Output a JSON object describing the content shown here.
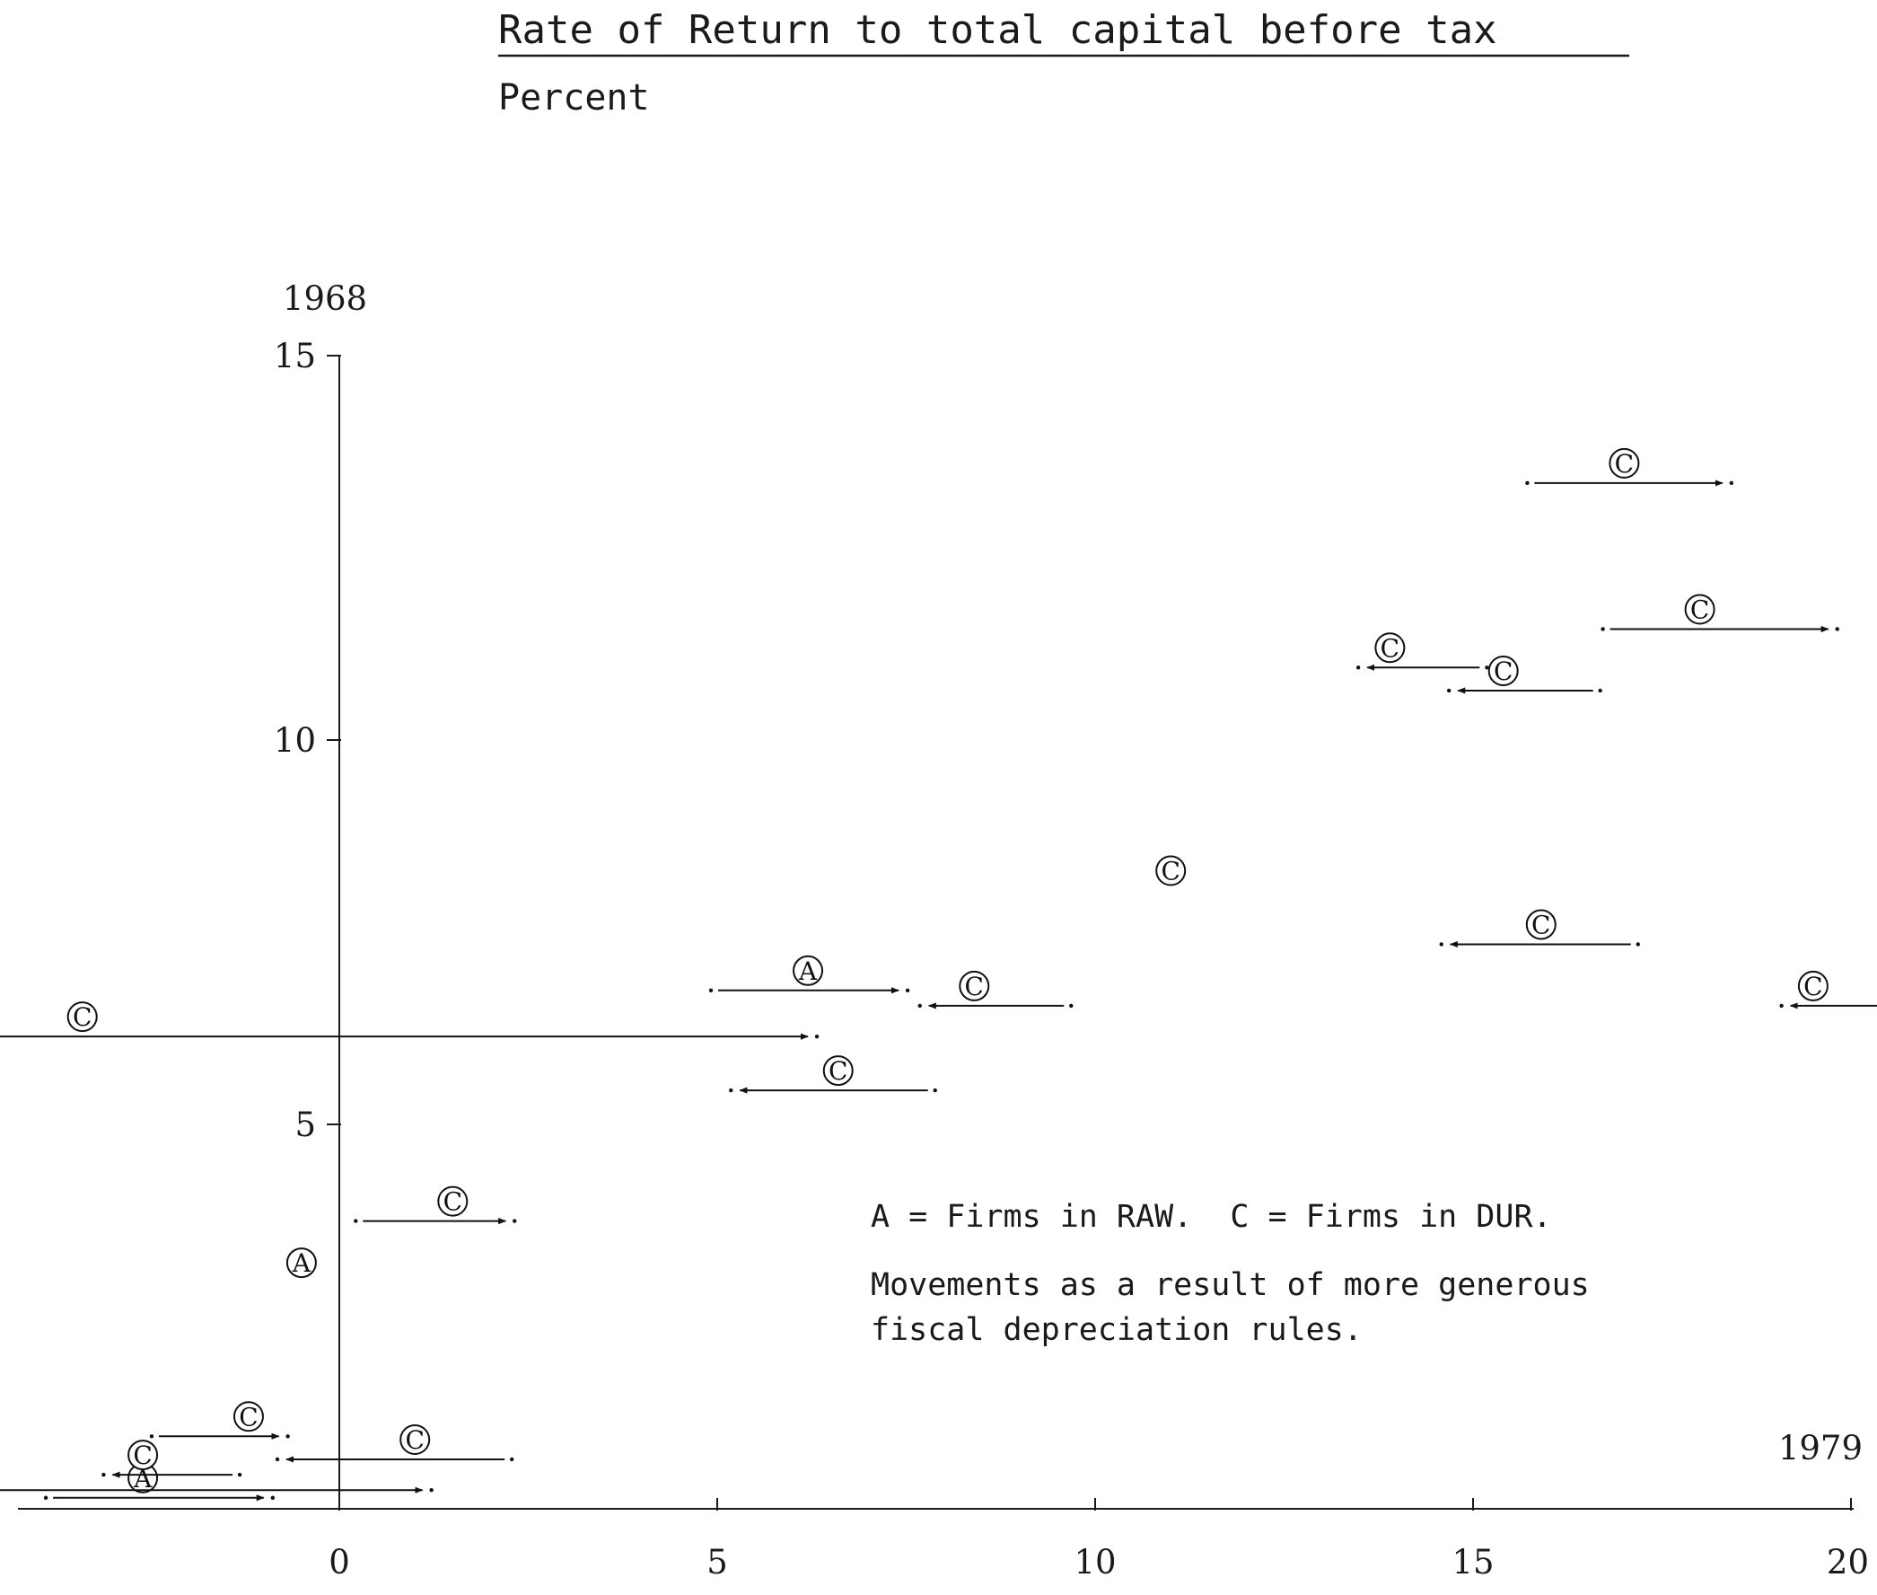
{
  "chart_data": {
    "type": "scatter",
    "title": "Rate of Return to total capital before tax",
    "subtitle": "Percent",
    "ylabel": "1968",
    "xlabel": "1979",
    "xlim": [
      -4.2,
      20
    ],
    "ylim": [
      0,
      15
    ],
    "xticks": [
      "0",
      "5",
      "10",
      "15",
      "20"
    ],
    "yticks": [
      "5",
      "10",
      "15"
    ],
    "grid": false,
    "legend": {
      "key": "A = Firms in RAW.  C = Firms in DUR.",
      "note_lines": [
        "Movements as a result of more generous",
        "fiscal depreciation rules."
      ]
    },
    "series": [
      {
        "name": "A",
        "points": [
          {
            "x": 6.2,
            "y": 7.0,
            "x_to": 7.4
          },
          {
            "x": -2.6,
            "y": 0.4,
            "x_to": -1.0
          },
          {
            "x": -5.0,
            "y": 0.5,
            "x_to": 1.1
          },
          {
            "x": -0.5,
            "y": 3.2
          }
        ]
      },
      {
        "name": "C",
        "points": [
          {
            "x": 17.0,
            "y": 13.6,
            "x_to": 18.3
          },
          {
            "x": 18.0,
            "y": 11.7,
            "x_to": 19.7
          },
          {
            "x": 13.9,
            "y": 11.2,
            "x_to": 13.6
          },
          {
            "x": 15.4,
            "y": 10.9,
            "x_to": 14.8
          },
          {
            "x": 11.0,
            "y": 8.3
          },
          {
            "x": 15.9,
            "y": 7.6,
            "x_to": 14.7
          },
          {
            "x": 8.4,
            "y": 6.8,
            "x_to": 7.8
          },
          {
            "x": 19.5,
            "y": 6.8,
            "x_to": 19.2
          },
          {
            "x": -3.4,
            "y": 6.4,
            "x_to": 6.2
          },
          {
            "x": 6.6,
            "y": 5.7,
            "x_to": 5.3
          },
          {
            "x": 1.5,
            "y": 4.0,
            "x_to": 2.2
          },
          {
            "x": -1.2,
            "y": 1.2,
            "x_to": -0.8
          },
          {
            "x": 1.0,
            "y": 0.9,
            "x_to": -0.7
          },
          {
            "x": -2.6,
            "y": 0.7,
            "x_to": -3.0
          }
        ]
      }
    ]
  }
}
